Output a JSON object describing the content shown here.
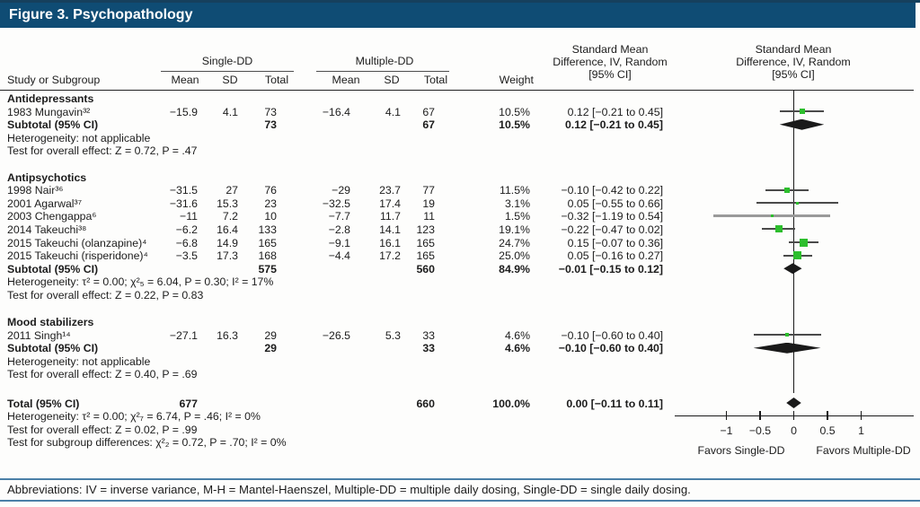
{
  "title": "Figure 3. Psychopathology",
  "header": {
    "study_col": "Study or Subgroup",
    "group_single": "Single-DD",
    "group_multiple": "Multiple-DD",
    "subcols": [
      "Mean",
      "SD",
      "Total"
    ],
    "weight_col": "Weight",
    "smd_col": "Standard Mean\nDifference, IV, Random\n[95% CI]"
  },
  "table": {
    "sections": [
      {
        "header": "Antidepressants",
        "studies": [
          {
            "name": "1983 Mungavin³²",
            "s_mean": "−15.9",
            "s_sd": "4.1",
            "s_total": "73",
            "m_mean": "−16.4",
            "m_sd": "4.1",
            "m_total": "67",
            "weight": "10.5%",
            "ci": "0.12 [−0.21 to 0.45]"
          }
        ],
        "subtotal": {
          "name": "Subtotal (95% CI)",
          "s_total": "73",
          "m_total": "67",
          "weight": "10.5%",
          "ci": "0.12 [−0.21 to 0.45]"
        },
        "notes": [
          "Heterogeneity: not applicable",
          "Test for overall effect: Z = 0.72, P = .47"
        ]
      },
      {
        "header": "Antipsychotics",
        "studies": [
          {
            "name": "1998 Nair³⁶",
            "s_mean": "−31.5",
            "s_sd": "27",
            "s_total": "76",
            "m_mean": "−29",
            "m_sd": "23.7",
            "m_total": "77",
            "weight": "11.5%",
            "ci": "−0.10 [−0.42 to 0.22]"
          },
          {
            "name": "2001 Agarwal³⁷",
            "s_mean": "−31.6",
            "s_sd": "15.3",
            "s_total": "23",
            "m_mean": "−32.5",
            "m_sd": "17.4",
            "m_total": "19",
            "weight": "3.1%",
            "ci": "0.05 [−0.55 to 0.66]"
          },
          {
            "name": "2003 Chengappa⁶",
            "s_mean": "−11",
            "s_sd": "7.2",
            "s_total": "10",
            "m_mean": "−7.7",
            "m_sd": "11.7",
            "m_total": "11",
            "weight": "1.5%",
            "ci": "−0.32 [−1.19 to 0.54]"
          },
          {
            "name": "2014 Takeuchi³⁸",
            "s_mean": "−6.2",
            "s_sd": "16.4",
            "s_total": "133",
            "m_mean": "−2.8",
            "m_sd": "14.1",
            "m_total": "123",
            "weight": "19.1%",
            "ci": "−0.22 [−0.47 to 0.02]"
          },
          {
            "name": "2015 Takeuchi (olanzapine)⁴",
            "s_mean": "−6.8",
            "s_sd": "14.9",
            "s_total": "165",
            "m_mean": "−9.1",
            "m_sd": "16.1",
            "m_total": "165",
            "weight": "24.7%",
            "ci": "0.15 [−0.07 to 0.36]"
          },
          {
            "name": "2015 Takeuchi (risperidone)⁴",
            "s_mean": "−3.5",
            "s_sd": "17.3",
            "s_total": "168",
            "m_mean": "−4.4",
            "m_sd": "17.2",
            "m_total": "165",
            "weight": "25.0%",
            "ci": "0.05 [−0.16 to 0.27]"
          }
        ],
        "subtotal": {
          "name": "Subtotal (95% CI)",
          "s_total": "575",
          "m_total": "560",
          "weight": "84.9%",
          "ci": "−0.01 [−0.15 to 0.12]"
        },
        "notes": [
          "Heterogeneity: τ² = 0.00; χ²₅ = 6.04, P = 0.30; I² = 17%",
          "Test for overall effect: Z = 0.22, P = 0.83"
        ]
      },
      {
        "header": "Mood stabilizers",
        "studies": [
          {
            "name": "2011 Singh¹⁴",
            "s_mean": "−27.1",
            "s_sd": "16.3",
            "s_total": "29",
            "m_mean": "−26.5",
            "m_sd": "5.3",
            "m_total": "33",
            "weight": "4.6%",
            "ci": "−0.10 [−0.60 to 0.40]"
          }
        ],
        "subtotal": {
          "name": "Subtotal (95% CI)",
          "s_total": "29",
          "m_total": "33",
          "weight": "4.6%",
          "ci": "−0.10 [−0.60 to 0.40]"
        },
        "notes": [
          "Heterogeneity: not applicable",
          "Test for overall effect: Z = 0.40, P = .69"
        ]
      }
    ],
    "total": {
      "name": "Total (95% CI)",
      "s_total": "677",
      "m_total": "660",
      "weight": "100.0%",
      "ci": "0.00 [−0.11 to 0.11]",
      "notes": [
        "Heterogeneity: τ² = 0.00; χ²₇ = 6.74, P = .46; I² = 0%",
        "Test for overall effect: Z = 0.02, P = .99",
        "Test for subgroup differences: χ²₂ = 0.72, P = .70; I² = 0%"
      ]
    }
  },
  "chart_data": {
    "type": "forest",
    "effect_measure": "Standard Mean Difference, IV, Random [95% CI]",
    "xlim": [
      -1.75,
      1.85
    ],
    "ticks": [
      {
        "v": -1,
        "label": "−1"
      },
      {
        "v": -0.5,
        "label": "−0.5"
      },
      {
        "v": 0,
        "label": "0"
      },
      {
        "v": 0.5,
        "label": "0.5"
      },
      {
        "v": 1,
        "label": "1"
      }
    ],
    "favors_left": "Favors Single-DD",
    "favors_right": "Favors Multiple-DD",
    "studies": [
      {
        "label": "1983 Mungavin³²",
        "est": 0.12,
        "lo": -0.21,
        "hi": 0.45,
        "weight_pct": 10.5
      },
      {
        "label": "1998 Nair³⁶",
        "est": -0.1,
        "lo": -0.42,
        "hi": 0.22,
        "weight_pct": 11.5
      },
      {
        "label": "2001 Agarwal³⁷",
        "est": 0.05,
        "lo": -0.55,
        "hi": 0.66,
        "weight_pct": 3.1
      },
      {
        "label": "2003 Chengappa⁶",
        "est": -0.32,
        "lo": -1.19,
        "hi": 0.54,
        "weight_pct": 1.5
      },
      {
        "label": "2014 Takeuchi³⁸",
        "est": -0.22,
        "lo": -0.47,
        "hi": 0.02,
        "weight_pct": 19.1
      },
      {
        "label": "2015 Takeuchi (olanzapine)⁴",
        "est": 0.15,
        "lo": -0.07,
        "hi": 0.36,
        "weight_pct": 24.7
      },
      {
        "label": "2015 Takeuchi (risperidone)⁴",
        "est": 0.05,
        "lo": -0.16,
        "hi": 0.27,
        "weight_pct": 25.0
      },
      {
        "label": "2011 Singh¹⁴",
        "est": -0.1,
        "lo": -0.6,
        "hi": 0.4,
        "weight_pct": 4.6
      }
    ],
    "diamonds": [
      {
        "at": "subtotal:0",
        "label": "Antidepressants subtotal",
        "est": 0.12,
        "lo": -0.21,
        "hi": 0.45
      },
      {
        "at": "subtotal:1",
        "label": "Antipsychotics subtotal",
        "est": -0.01,
        "lo": -0.15,
        "hi": 0.12
      },
      {
        "at": "subtotal:2",
        "label": "Mood stabilizers subtotal",
        "est": -0.1,
        "lo": -0.6,
        "hi": 0.4
      },
      {
        "at": "total",
        "label": "Total",
        "est": 0.0,
        "lo": -0.11,
        "hi": 0.11
      }
    ],
    "marker_color": "#2dbe2d",
    "diamond_color": "#1a1a1a"
  },
  "footer": {
    "abbreviations": "Abbreviations: IV = inverse variance, M-H = Mantel-Haenszel, Multiple-DD = multiple daily dosing, Single-DD = single daily dosing."
  },
  "colors": {
    "title_bar": "#0f4c74",
    "footer_rule": "#4b7fa7",
    "marker_green": "#2dbe2d"
  }
}
